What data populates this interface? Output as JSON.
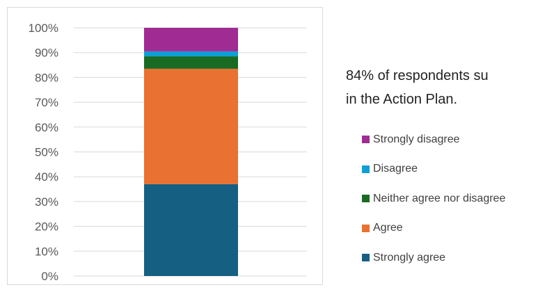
{
  "note": {
    "line1": "84% of respondents su",
    "line2": "in the Action Plan."
  },
  "chart_data": {
    "type": "bar",
    "stacked": true,
    "categories": [
      ""
    ],
    "ylim": [
      0,
      100
    ],
    "yticks": [
      "0%",
      "10%",
      "20%",
      "30%",
      "40%",
      "50%",
      "60%",
      "70%",
      "80%",
      "90%",
      "100%"
    ],
    "grid": true,
    "legend_position": "right",
    "series": [
      {
        "name": "Strongly agree",
        "values": [
          37
        ],
        "color": "#156082"
      },
      {
        "name": "Agree",
        "values": [
          46.5
        ],
        "color": "#e97132"
      },
      {
        "name": "Neither agree nor disagree",
        "values": [
          5
        ],
        "color": "#196b24"
      },
      {
        "name": "Disagree",
        "values": [
          2
        ],
        "color": "#0f9ed5"
      },
      {
        "name": "Strongly disagree",
        "values": [
          9.5
        ],
        "color": "#a02b93"
      }
    ]
  }
}
